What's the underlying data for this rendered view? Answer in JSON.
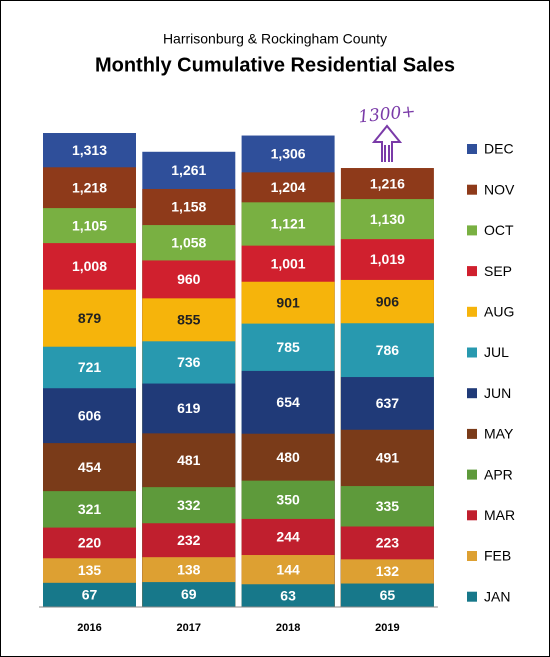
{
  "chart_data": {
    "type": "bar",
    "title": "Monthly Cumulative Residential Sales",
    "subtitle": "Harrisonburg & Rockingham County",
    "annotation": "1300+",
    "categories": [
      "2016",
      "2017",
      "2018",
      "2019"
    ],
    "ylim": [
      0,
      1400
    ],
    "series": [
      {
        "name": "JAN",
        "color": "#17788a",
        "label_color": "#ffffff",
        "values": [
          67,
          69,
          63,
          65
        ]
      },
      {
        "name": "FEB",
        "color": "#dda032",
        "label_color": "#ffffff",
        "values": [
          135,
          138,
          144,
          132
        ]
      },
      {
        "name": "MAR",
        "color": "#c01f2e",
        "label_color": "#ffffff",
        "values": [
          220,
          232,
          244,
          223
        ]
      },
      {
        "name": "APR",
        "color": "#5e9a3b",
        "label_color": "#ffffff",
        "values": [
          321,
          332,
          350,
          335
        ]
      },
      {
        "name": "MAY",
        "color": "#7a3b19",
        "label_color": "#ffffff",
        "values": [
          454,
          481,
          480,
          491
        ]
      },
      {
        "name": "JUN",
        "color": "#203a78",
        "label_color": "#ffffff",
        "values": [
          606,
          619,
          654,
          637
        ]
      },
      {
        "name": "JUL",
        "color": "#2899af",
        "label_color": "#ffffff",
        "values": [
          721,
          736,
          785,
          786
        ]
      },
      {
        "name": "AUG",
        "color": "#f6b40b",
        "label_color": "#222222",
        "values": [
          879,
          855,
          901,
          906
        ]
      },
      {
        "name": "SEP",
        "color": "#d0202e",
        "label_color": "#ffffff",
        "values": [
          1008,
          960,
          1001,
          1019
        ],
        "value_labels": [
          "1,008",
          "960",
          "1,001",
          "1,019"
        ]
      },
      {
        "name": "OCT",
        "color": "#79b042",
        "label_color": "#ffffff",
        "values": [
          1105,
          1058,
          1121,
          1130
        ],
        "value_labels": [
          "1,105",
          "1,058",
          "1,121",
          "1,130"
        ]
      },
      {
        "name": "NOV",
        "color": "#8e3a1a",
        "label_color": "#ffffff",
        "values": [
          1218,
          1158,
          1204,
          1216
        ],
        "value_labels": [
          "1,218",
          "1,158",
          "1,204",
          "1,216"
        ]
      },
      {
        "name": "DEC",
        "color": "#2f4f9a",
        "label_color": "#ffffff",
        "values": [
          1313,
          1261,
          1306,
          null
        ],
        "value_labels": [
          "1,313",
          "1,261",
          "1,306",
          null
        ]
      }
    ]
  }
}
